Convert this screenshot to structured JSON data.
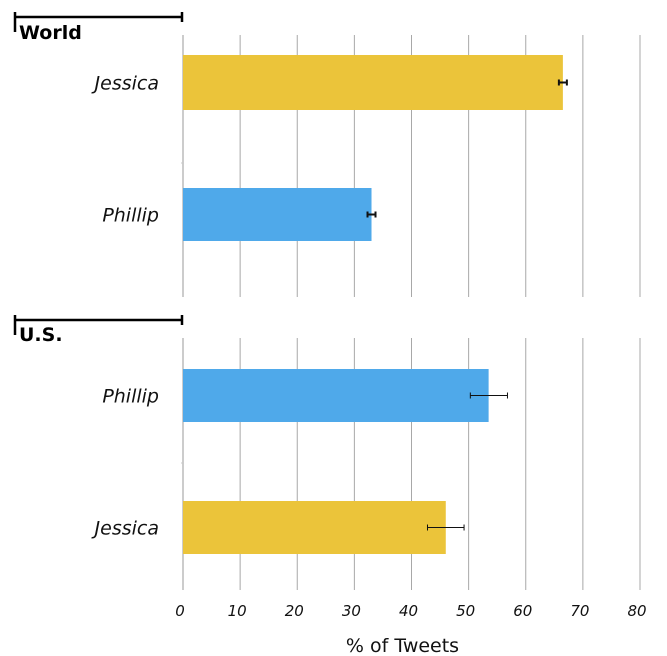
{
  "chart_data": {
    "type": "bar",
    "orientation": "horizontal",
    "xlabel": "% of Tweets",
    "xlim": [
      0,
      80
    ],
    "xticks": [
      0,
      10,
      20,
      30,
      40,
      50,
      60,
      70,
      80
    ],
    "grid": "vertical",
    "colors": {
      "Jessica": "#EBC43A",
      "Phillip": "#4FA9EA"
    },
    "panels": [
      {
        "label": "World",
        "bars": [
          {
            "category": "Jessica",
            "value": 66.5,
            "err_low": 65.8,
            "err_high": 67.2
          },
          {
            "category": "Phillip",
            "value": 33.0,
            "err_low": 32.3,
            "err_high": 33.7
          }
        ]
      },
      {
        "label": "U.S.",
        "bars": [
          {
            "category": "Phillip",
            "value": 53.5,
            "err_low": 50.3,
            "err_high": 56.8
          },
          {
            "category": "Jessica",
            "value": 46.0,
            "err_low": 42.8,
            "err_high": 49.2
          }
        ]
      }
    ]
  }
}
